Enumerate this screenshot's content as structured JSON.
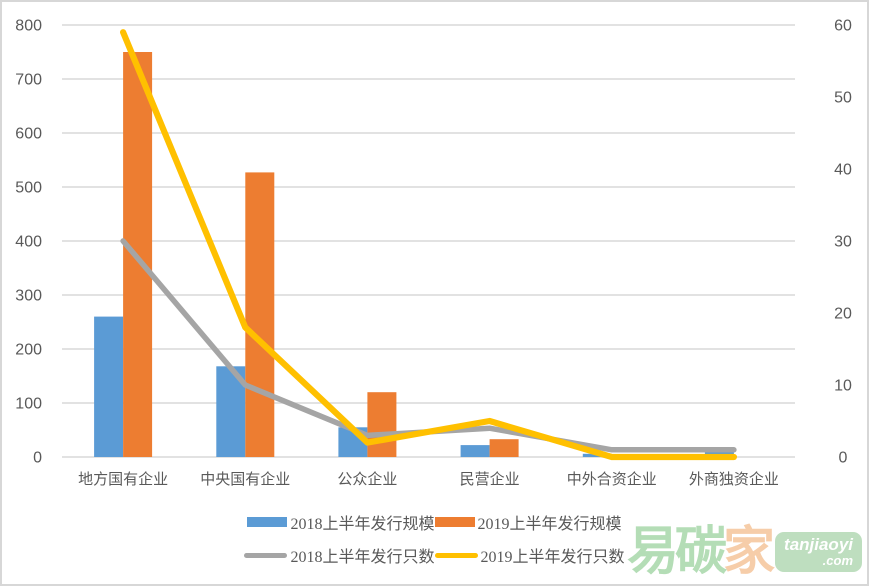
{
  "chart_data": {
    "type": "bar+line combo, dual axis",
    "categories": [
      "地方国有企业",
      "中央国有企业",
      "公众企业",
      "民营企业",
      "中外合资企业",
      "外商独资企业"
    ],
    "bar_series": [
      {
        "name": "2018上半年发行规模",
        "color": "#5B9BD5",
        "axis": "left",
        "values": [
          260,
          168,
          55,
          22,
          6,
          10
        ]
      },
      {
        "name": "2019上半年发行规模",
        "color": "#ED7D31",
        "axis": "left",
        "values": [
          750,
          527,
          120,
          33,
          0,
          0
        ]
      }
    ],
    "line_series": [
      {
        "name": "2018上半年发行只数",
        "color": "#A5A5A5",
        "axis": "right",
        "values": [
          30,
          10,
          3,
          4,
          1,
          1
        ]
      },
      {
        "name": "2019上半年发行只数",
        "color": "#FFC000",
        "axis": "right",
        "values": [
          59,
          18,
          2,
          5,
          0,
          0
        ]
      }
    ],
    "left_axis": {
      "min": 0,
      "max": 800,
      "step": 100
    },
    "right_axis": {
      "min": 0,
      "max": 60,
      "step": 10
    },
    "title": "",
    "xlabel": "",
    "ylabel": "",
    "grid": "horizontal gridlines on, left-axis spacing",
    "legend_position": "bottom, two rows"
  },
  "colors": {
    "gridline": "#d9d9d9",
    "axis_text": "#595959",
    "frame_border": "#d7d7d7",
    "watermark_green": "#aedbb0",
    "watermark_peach": "#f6c9a2",
    "watermark_badge_bg": "#b9dcba",
    "watermark_badge_text": "#ffffff"
  },
  "watermark": {
    "char1": "易",
    "char2": "碳",
    "char3": "家",
    "badge_line1": "tanjiaoyi",
    "badge_line2": ".com"
  }
}
